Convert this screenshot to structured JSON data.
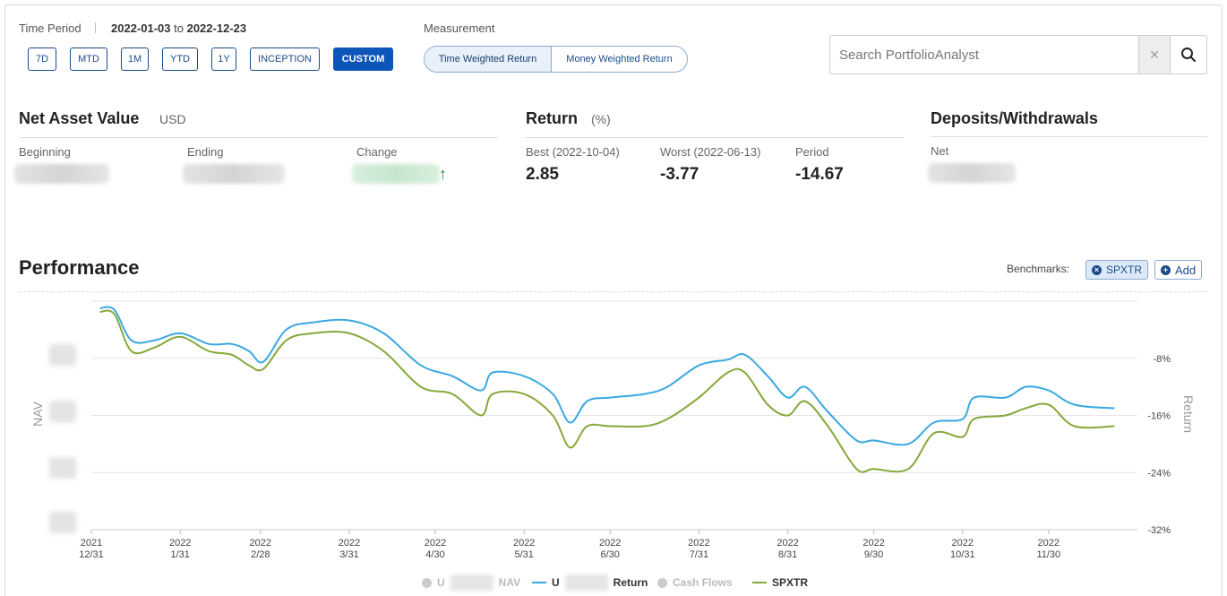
{
  "time_period": {
    "label": "Time Period",
    "start": "2022-01-03",
    "to": "to",
    "end": "2022-12-23",
    "buttons": [
      "7D",
      "MTD",
      "1M",
      "YTD",
      "1Y",
      "INCEPTION",
      "CUSTOM"
    ],
    "active": "CUSTOM"
  },
  "measurement": {
    "label": "Measurement",
    "options": [
      "Time Weighted Return",
      "Money Weighted Return"
    ],
    "selected": "Time Weighted Return"
  },
  "search": {
    "placeholder": "Search PortfolioAnalyst",
    "clear": "×"
  },
  "nav": {
    "title": "Net Asset Value",
    "unit": "USD",
    "beginning_label": "Beginning",
    "ending_label": "Ending",
    "change_label": "Change"
  },
  "return": {
    "title": "Return",
    "unit": "(%)",
    "best_label": "Best (2022-10-04)",
    "best_value": "2.85",
    "worst_label": "Worst (2022-06-13)",
    "worst_value": "-3.77",
    "period_label": "Period",
    "period_value": "-14.67"
  },
  "deposits": {
    "title": "Deposits/Withdrawals",
    "net_label": "Net"
  },
  "performance": {
    "title": "Performance",
    "benchmarks_label": "Benchmarks:",
    "benchmark": "SPXTR",
    "add_label": "Add"
  },
  "legend": {
    "nav_prefix": "U",
    "nav_suffix": "NAV",
    "return_prefix": "U",
    "return_suffix": "Return",
    "cash_flows": "Cash Flows",
    "benchmark": "SPXTR"
  },
  "colors": {
    "accent": "#0d55b8",
    "return_line": "#3aa8e0",
    "benchmark_line": "#86a83a",
    "positive": "#1e8a3c"
  },
  "chart_data": {
    "type": "line",
    "title": "Performance",
    "ylabel_left": "NAV",
    "ylabel_right": "Return",
    "y_right_ticks": [
      "-8%",
      "-16%",
      "-24%",
      "-32%"
    ],
    "ylim": [
      -32,
      0
    ],
    "x_ticks": [
      {
        "date": "2021-12-31",
        "year": "2021",
        "md": "12/31"
      },
      {
        "date": "2022-01-31",
        "year": "2022",
        "md": "1/31"
      },
      {
        "date": "2022-02-28",
        "year": "2022",
        "md": "2/28"
      },
      {
        "date": "2022-03-31",
        "year": "2022",
        "md": "3/31"
      },
      {
        "date": "2022-04-30",
        "year": "2022",
        "md": "4/30"
      },
      {
        "date": "2022-05-31",
        "year": "2022",
        "md": "5/31"
      },
      {
        "date": "2022-06-30",
        "year": "2022",
        "md": "6/30"
      },
      {
        "date": "2022-07-31",
        "year": "2022",
        "md": "7/31"
      },
      {
        "date": "2022-08-31",
        "year": "2022",
        "md": "8/31"
      },
      {
        "date": "2022-09-30",
        "year": "2022",
        "md": "9/30"
      },
      {
        "date": "2022-10-31",
        "year": "2022",
        "md": "10/31"
      },
      {
        "date": "2022-11-30",
        "year": "2022",
        "md": "11/30"
      }
    ],
    "series": [
      {
        "name": "Return",
        "points": [
          [
            "2022-01-03",
            -1.0
          ],
          [
            "2022-01-08",
            -1.2
          ],
          [
            "2022-01-14",
            -5.5
          ],
          [
            "2022-01-22",
            -5.5
          ],
          [
            "2022-01-31",
            -4.5
          ],
          [
            "2022-02-10",
            -6.0
          ],
          [
            "2022-02-18",
            -6.0
          ],
          [
            "2022-02-24",
            -7.0
          ],
          [
            "2022-03-01",
            -8.5
          ],
          [
            "2022-03-09",
            -4.0
          ],
          [
            "2022-03-18",
            -3.0
          ],
          [
            "2022-03-31",
            -2.7
          ],
          [
            "2022-04-12",
            -4.5
          ],
          [
            "2022-04-25",
            -9.0
          ],
          [
            "2022-05-06",
            -10.5
          ],
          [
            "2022-05-16",
            -12.5
          ],
          [
            "2022-05-20",
            -10.0
          ],
          [
            "2022-05-31",
            -10.5
          ],
          [
            "2022-06-10",
            -13.0
          ],
          [
            "2022-06-16",
            -17.0
          ],
          [
            "2022-06-22",
            -14.0
          ],
          [
            "2022-06-30",
            -13.5
          ],
          [
            "2022-07-12",
            -13.0
          ],
          [
            "2022-07-20",
            -12.0
          ],
          [
            "2022-07-31",
            -9.0
          ],
          [
            "2022-08-10",
            -8.2
          ],
          [
            "2022-08-16",
            -7.5
          ],
          [
            "2022-08-24",
            -10.5
          ],
          [
            "2022-08-31",
            -13.5
          ],
          [
            "2022-09-06",
            -12.0
          ],
          [
            "2022-09-14",
            -15.5
          ],
          [
            "2022-09-24",
            -19.5
          ],
          [
            "2022-09-30",
            -19.5
          ],
          [
            "2022-10-12",
            -20.0
          ],
          [
            "2022-10-21",
            -17.0
          ],
          [
            "2022-10-31",
            -16.5
          ],
          [
            "2022-11-04",
            -13.5
          ],
          [
            "2022-11-15",
            -13.5
          ],
          [
            "2022-11-22",
            -12.0
          ],
          [
            "2022-11-30",
            -12.5
          ],
          [
            "2022-12-09",
            -14.5
          ],
          [
            "2022-12-23",
            -15.0
          ]
        ]
      },
      {
        "name": "SPXTR",
        "points": [
          [
            "2022-01-03",
            -1.5
          ],
          [
            "2022-01-08",
            -1.8
          ],
          [
            "2022-01-14",
            -7.0
          ],
          [
            "2022-01-22",
            -6.5
          ],
          [
            "2022-01-31",
            -5.0
          ],
          [
            "2022-02-10",
            -7.0
          ],
          [
            "2022-02-18",
            -7.5
          ],
          [
            "2022-02-24",
            -9.0
          ],
          [
            "2022-03-01",
            -9.5
          ],
          [
            "2022-03-09",
            -5.5
          ],
          [
            "2022-03-18",
            -4.5
          ],
          [
            "2022-03-31",
            -4.5
          ],
          [
            "2022-04-12",
            -7.0
          ],
          [
            "2022-04-25",
            -12.0
          ],
          [
            "2022-05-06",
            -13.0
          ],
          [
            "2022-05-16",
            -16.0
          ],
          [
            "2022-05-20",
            -13.0
          ],
          [
            "2022-05-31",
            -13.0
          ],
          [
            "2022-06-10",
            -16.0
          ],
          [
            "2022-06-16",
            -20.5
          ],
          [
            "2022-06-22",
            -17.5
          ],
          [
            "2022-06-30",
            -17.5
          ],
          [
            "2022-07-12",
            -17.5
          ],
          [
            "2022-07-20",
            -16.5
          ],
          [
            "2022-07-31",
            -13.5
          ],
          [
            "2022-08-10",
            -10.0
          ],
          [
            "2022-08-16",
            -10.0
          ],
          [
            "2022-08-24",
            -14.5
          ],
          [
            "2022-08-31",
            -16.0
          ],
          [
            "2022-09-06",
            -14.0
          ],
          [
            "2022-09-14",
            -17.5
          ],
          [
            "2022-09-24",
            -23.5
          ],
          [
            "2022-09-30",
            -23.5
          ],
          [
            "2022-10-12",
            -23.5
          ],
          [
            "2022-10-21",
            -18.5
          ],
          [
            "2022-10-31",
            -19.0
          ],
          [
            "2022-11-04",
            -16.5
          ],
          [
            "2022-11-15",
            -16.0
          ],
          [
            "2022-11-22",
            -15.0
          ],
          [
            "2022-11-30",
            -14.5
          ],
          [
            "2022-12-09",
            -17.5
          ],
          [
            "2022-12-23",
            -17.5
          ]
        ]
      }
    ],
    "grid": true,
    "legend_position": "bottom"
  }
}
